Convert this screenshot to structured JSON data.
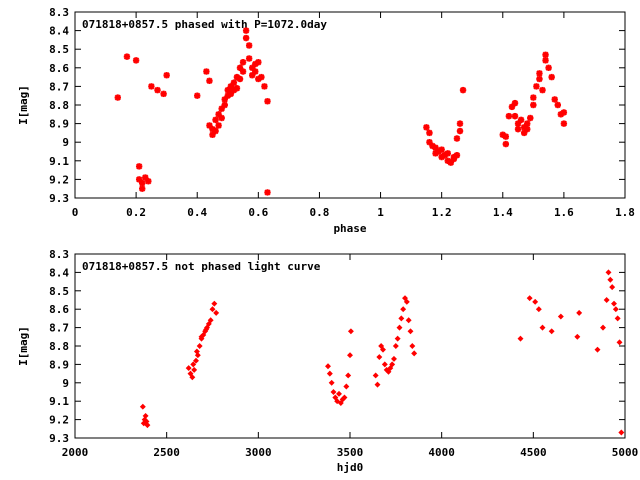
{
  "chart_data": [
    {
      "type": "scatter",
      "title": "071818+0857.5 phased with P=1072.0day",
      "xlabel": "phase",
      "ylabel": "I[mag]",
      "xlim": [
        0,
        1.8
      ],
      "ylim": [
        9.3,
        8.3
      ],
      "y_inverted": true,
      "xticks": [
        "0",
        "0.2",
        "0.4",
        "0.6",
        "0.8",
        "1",
        "1.2",
        "1.4",
        "1.6",
        "1.8"
      ],
      "yticks": [
        "8.3",
        "8.4",
        "8.5",
        "8.6",
        "8.7",
        "8.8",
        "8.9",
        "9",
        "9.1",
        "9.2",
        "9.3"
      ],
      "marker": "star",
      "color": "#ff0000",
      "series": [
        {
          "x": [
            0.14,
            0.17,
            0.2,
            0.21,
            0.21,
            0.22,
            0.22,
            0.23,
            0.24,
            0.25,
            0.27,
            0.29,
            0.3,
            0.4,
            0.43,
            0.44,
            0.44,
            0.45,
            0.45,
            0.46,
            0.46,
            0.47,
            0.47,
            0.48,
            0.48,
            0.49,
            0.49,
            0.5,
            0.5,
            0.51,
            0.51,
            0.52,
            0.52,
            0.53,
            0.53,
            0.54,
            0.54,
            0.55,
            0.55,
            0.56,
            0.56,
            0.57,
            0.57,
            0.58,
            0.58,
            0.59,
            0.59,
            0.6,
            0.6,
            0.61,
            0.62,
            0.63,
            0.63,
            1.15,
            1.16,
            1.16,
            1.17,
            1.18,
            1.18,
            1.19,
            1.2,
            1.2,
            1.21,
            1.22,
            1.22,
            1.23,
            1.24,
            1.24,
            1.25,
            1.25,
            1.26,
            1.26,
            1.27,
            1.4,
            1.41,
            1.41,
            1.42,
            1.43,
            1.44,
            1.44,
            1.45,
            1.45,
            1.46,
            1.47,
            1.47,
            1.48,
            1.48,
            1.49,
            1.5,
            1.5,
            1.51,
            1.52,
            1.52,
            1.53,
            1.54,
            1.54,
            1.55,
            1.56,
            1.57,
            1.58,
            1.59,
            1.6,
            1.6
          ],
          "y": [
            8.76,
            8.54,
            8.56,
            9.13,
            9.2,
            9.22,
            9.25,
            9.19,
            9.21,
            8.7,
            8.72,
            8.74,
            8.64,
            8.75,
            8.62,
            8.67,
            8.91,
            8.93,
            8.96,
            8.88,
            8.94,
            8.91,
            8.85,
            8.82,
            8.87,
            8.8,
            8.77,
            8.75,
            8.72,
            8.7,
            8.74,
            8.68,
            8.72,
            8.65,
            8.71,
            8.6,
            8.66,
            8.57,
            8.62,
            8.4,
            8.44,
            8.48,
            8.55,
            8.6,
            8.64,
            8.58,
            8.62,
            8.57,
            8.66,
            8.65,
            8.7,
            8.78,
            9.27,
            8.92,
            8.95,
            9.0,
            9.02,
            9.03,
            9.06,
            9.05,
            9.08,
            9.04,
            9.07,
            9.1,
            9.06,
            9.11,
            9.09,
            9.08,
            9.07,
            8.98,
            8.94,
            8.9,
            8.72,
            8.96,
            9.01,
            8.97,
            8.86,
            8.81,
            8.79,
            8.86,
            8.9,
            8.93,
            8.88,
            8.92,
            8.95,
            8.9,
            8.93,
            8.87,
            8.8,
            8.76,
            8.7,
            8.66,
            8.63,
            8.72,
            8.56,
            8.53,
            8.6,
            8.65,
            8.77,
            8.8,
            8.85,
            8.9,
            8.84
          ]
        }
      ]
    },
    {
      "type": "scatter",
      "title": "071818+0857.5 not phased light curve",
      "xlabel": "hjd0",
      "ylabel": "I[mag]",
      "xlim": [
        2000,
        5000
      ],
      "ylim": [
        9.3,
        8.3
      ],
      "y_inverted": true,
      "xticks": [
        "2000",
        "2500",
        "3000",
        "3500",
        "4000",
        "4500",
        "5000"
      ],
      "yticks": [
        "8.3",
        "8.4",
        "8.5",
        "8.6",
        "8.7",
        "8.8",
        "8.9",
        "9",
        "9.1",
        "9.2",
        "9.3"
      ],
      "marker": "diamond",
      "color": "#ff0000",
      "series": [
        {
          "x": [
            2370,
            2375,
            2380,
            2385,
            2390,
            2395,
            2620,
            2630,
            2640,
            2650,
            2660,
            2670,
            2680,
            2690,
            2700,
            2710,
            2720,
            2730,
            2740,
            2750,
            2760,
            2770,
            2645,
            2665,
            2690,
            2715,
            3380,
            3390,
            3400,
            3410,
            3420,
            3430,
            3440,
            3450,
            3460,
            3470,
            3480,
            3490,
            3500,
            3505,
            3640,
            3650,
            3660,
            3670,
            3680,
            3690,
            3700,
            3710,
            3720,
            3730,
            3740,
            3750,
            3760,
            3770,
            3780,
            3790,
            3800,
            3810,
            3820,
            3830,
            3840,
            3850,
            4430,
            4480,
            4510,
            4530,
            4550,
            4600,
            4650,
            4740,
            4750,
            4850,
            4880,
            4900,
            4910,
            4920,
            4930,
            4940,
            4950,
            4960,
            4970,
            4980
          ],
          "y": [
            9.13,
            9.22,
            9.2,
            9.18,
            9.21,
            9.23,
            8.92,
            8.95,
            8.97,
            8.93,
            8.88,
            8.85,
            8.8,
            8.76,
            8.74,
            8.72,
            8.7,
            8.68,
            8.66,
            8.6,
            8.57,
            8.62,
            8.9,
            8.83,
            8.75,
            8.71,
            8.91,
            8.95,
            9.0,
            9.05,
            9.08,
            9.1,
            9.06,
            9.11,
            9.09,
            9.08,
            9.02,
            8.96,
            8.85,
            8.72,
            8.96,
            9.01,
            8.86,
            8.8,
            8.82,
            8.9,
            8.93,
            8.94,
            8.92,
            8.9,
            8.87,
            8.8,
            8.76,
            8.7,
            8.65,
            8.6,
            8.54,
            8.56,
            8.66,
            8.72,
            8.8,
            8.84,
            8.76,
            8.54,
            8.56,
            8.6,
            8.7,
            8.72,
            8.64,
            8.75,
            8.62,
            8.82,
            8.7,
            8.55,
            8.4,
            8.44,
            8.48,
            8.57,
            8.6,
            8.65,
            8.78,
            9.27
          ]
        }
      ]
    }
  ]
}
